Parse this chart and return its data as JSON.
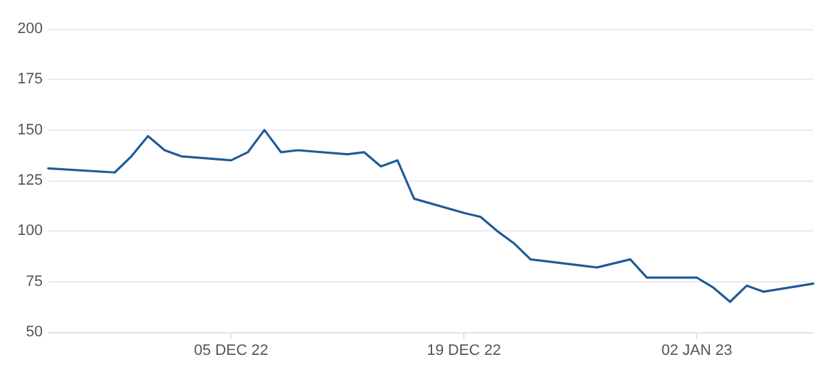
{
  "chart_data": {
    "type": "line",
    "x": [
      "2022-11-24",
      "2022-11-28",
      "2022-11-29",
      "2022-11-30",
      "2022-12-01",
      "2022-12-02",
      "2022-12-05",
      "2022-12-06",
      "2022-12-07",
      "2022-12-08",
      "2022-12-09",
      "2022-12-12",
      "2022-12-13",
      "2022-12-14",
      "2022-12-15",
      "2022-12-16",
      "2022-12-19",
      "2022-12-20",
      "2022-12-21",
      "2022-12-22",
      "2022-12-23",
      "2022-12-27",
      "2022-12-29",
      "2022-12-30",
      "2023-01-02",
      "2023-01-03",
      "2023-01-04",
      "2023-01-05",
      "2023-01-06",
      "2023-01-09"
    ],
    "series": [
      {
        "color": "#1f5a96",
        "values": [
          131,
          129,
          137,
          147,
          140,
          137,
          135,
          139,
          150,
          139,
          140,
          138,
          139,
          132,
          135,
          116,
          109,
          107,
          100,
          94,
          86,
          82,
          86,
          77,
          77,
          72,
          65,
          73,
          70,
          74
        ]
      }
    ],
    "xlim": [
      "2022-11-24",
      "2023-01-09"
    ],
    "xticks": [
      {
        "value": "2022-12-05",
        "label": "05 DEC 22"
      },
      {
        "value": "2022-12-19",
        "label": "19 DEC 22"
      },
      {
        "value": "2023-01-02",
        "label": "02 JAN 23"
      }
    ],
    "ylim": [
      50,
      200
    ],
    "yticks": [
      50,
      75,
      100,
      125,
      150,
      175,
      200
    ],
    "grid": "y",
    "marker": "none",
    "line_style": "solid"
  }
}
